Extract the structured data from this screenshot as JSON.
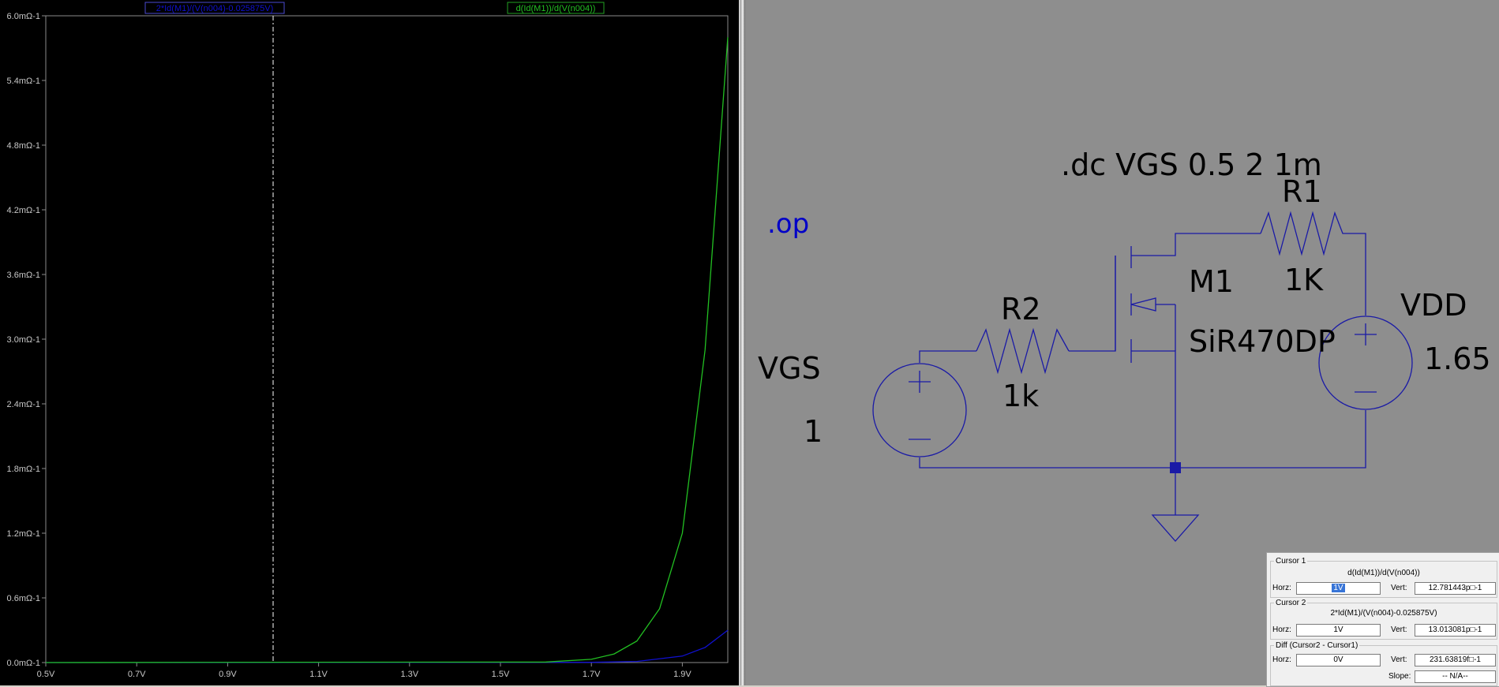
{
  "plot": {
    "trace_labels": [
      "2*Id(M1)/(V(n004)-0.025875V)",
      "d(Id(M1))/d(V(n004))"
    ],
    "y_ticks": [
      "6.0mΩ-1",
      "5.4mΩ-1",
      "4.8mΩ-1",
      "4.2mΩ-1",
      "3.6mΩ-1",
      "3.0mΩ-1",
      "2.4mΩ-1",
      "1.8mΩ-1",
      "1.2mΩ-1",
      "0.6mΩ-1",
      "0.0mΩ-1"
    ],
    "x_ticks": [
      "0.5V",
      "0.7V",
      "0.9V",
      "1.1V",
      "1.3V",
      "1.5V",
      "1.7V",
      "1.9V"
    ],
    "colors": {
      "background": "#000000",
      "trace1": "#1010d0",
      "trace2": "#22c022",
      "axis_text": "#c8c8c8",
      "cursor": "#ffffff"
    }
  },
  "chart_data": {
    "type": "line",
    "xlabel": "",
    "ylabel": "",
    "xlim": [
      0.5,
      2.0
    ],
    "ylim": [
      0,
      6.0
    ],
    "y_unit": "mΩ-1",
    "cursor_x": 1.0,
    "series": [
      {
        "name": "2*Id(M1)/(V(n004)-0.025875V)",
        "color": "#1010d0",
        "x": [
          0.5,
          1.7,
          1.8,
          1.9,
          1.95,
          2.0
        ],
        "y": [
          0,
          0.002,
          0.01,
          0.06,
          0.14,
          0.3
        ]
      },
      {
        "name": "d(Id(M1))/d(V(n004))",
        "color": "#22c022",
        "x": [
          0.5,
          1.6,
          1.7,
          1.75,
          1.8,
          1.85,
          1.9,
          1.95,
          2.0
        ],
        "y": [
          0,
          0.005,
          0.03,
          0.08,
          0.2,
          0.5,
          1.2,
          2.9,
          5.8
        ]
      }
    ]
  },
  "schematic": {
    "directive_dc": ".dc VGS 0.5 2 1m",
    "directive_op": ".op",
    "r1_name": "R1",
    "r1_value": "1K",
    "r2_name": "R2",
    "r2_value": "1k",
    "m1_name": "M1",
    "m1_model": "SiR470DP",
    "vdd_name": "VDD",
    "vdd_value": "1.65",
    "vgs_name": "VGS",
    "vgs_value": "1",
    "colors": {
      "wire": "#1a1aa6",
      "text": "#000000",
      "op_text": "#0000c8",
      "background": "#8e8e8e"
    }
  },
  "cursor_panel": {
    "cursor1": {
      "title": "Cursor 1",
      "trace": "d(Id(M1))/d(V(n004))",
      "horz_label": "Horz:",
      "horz": "1V",
      "vert_label": "Vert:",
      "vert": "12.781443p□-1"
    },
    "cursor2": {
      "title": "Cursor 2",
      "trace": "2*Id(M1)/(V(n004)-0.025875V)",
      "horz_label": "Horz:",
      "horz": "1V",
      "vert_label": "Vert:",
      "vert": "13.013081p□-1"
    },
    "diff": {
      "title": "Diff (Cursor2 - Cursor1)",
      "horz_label": "Horz:",
      "horz": "0V",
      "vert_label": "Vert:",
      "vert": "231.63819f□-1",
      "slope_label": "Slope:",
      "slope": "-- N/A--"
    }
  }
}
